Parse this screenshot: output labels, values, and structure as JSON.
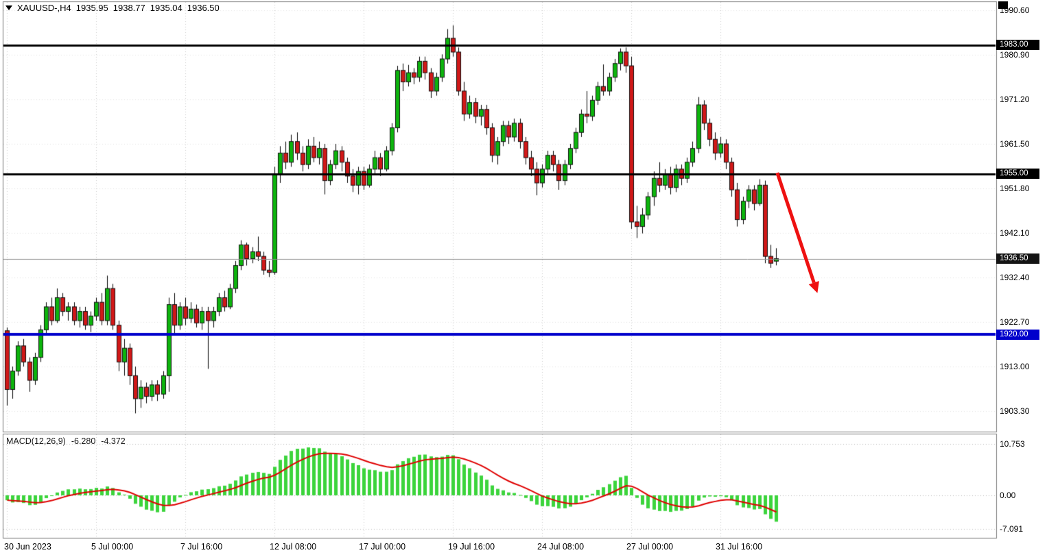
{
  "header": {
    "symbol_period": "XAUUSD-,H4",
    "open": "1935.95",
    "high": "1938.77",
    "low": "1935.04",
    "close": "1936.50"
  },
  "price_axis": {
    "ticks": [
      "1990.60",
      "1980.90",
      "1971.20",
      "1961.50",
      "1951.80",
      "1942.10",
      "1932.40",
      "1922.70",
      "1913.00",
      "1903.30"
    ]
  },
  "levels": [
    {
      "label": "1983.00",
      "price": 1983.0,
      "line_color": "#000000",
      "line_width": 3,
      "badge_bg": "#000000"
    },
    {
      "label": "1955.00",
      "price": 1955.0,
      "line_color": "#000000",
      "line_width": 3,
      "badge_bg": "#000000"
    },
    {
      "label": "1920.00",
      "price": 1920.0,
      "line_color": "#0000cc",
      "line_width": 4,
      "badge_bg": "#0000cc"
    },
    {
      "label": "1936.50",
      "price": 1936.5,
      "line_color": "#909090",
      "line_width": 1,
      "badge_bg": "#141414"
    }
  ],
  "time_axis": {
    "ticks": [
      {
        "label": "30 Jun 2023",
        "bar": 0
      },
      {
        "label": "5 Jul 00:00",
        "bar": 16
      },
      {
        "label": "7 Jul 16:00",
        "bar": 32
      },
      {
        "label": "12 Jul 08:00",
        "bar": 48
      },
      {
        "label": "17 Jul 00:00",
        "bar": 64
      },
      {
        "label": "19 Jul 16:00",
        "bar": 80
      },
      {
        "label": "24 Jul 08:00",
        "bar": 96
      },
      {
        "label": "27 Jul 00:00",
        "bar": 112
      },
      {
        "label": "31 Jul 16:00",
        "bar": 128
      }
    ]
  },
  "macd": {
    "label": "MACD(12,26,9)",
    "value_macd": "-6.280",
    "value_signal": "-4.372",
    "axis_labels": [
      "10.753",
      "0.00",
      "-7.091"
    ],
    "axis_ticks": [
      10.753,
      0,
      -7.091
    ]
  },
  "annotation_arrow": {
    "from": {
      "bar": 138.2,
      "price": 1955.2
    },
    "to": {
      "bar": 145.4,
      "price": 1929.0
    },
    "color": "#ee1111",
    "width": 5
  },
  "chart_data": {
    "type": "candlestick",
    "symbol": "XAUUSD-",
    "timeframe": "H4",
    "title": "XAUUSD- H4 with MACD(12,26,9), horizontal levels at 1983.00 / 1955.00 / 1920.00, current price 1936.50, red down arrow annotation",
    "price_axis_top_label": 1990.6,
    "price_axis_step": 9.7,
    "ohlc_format": [
      "open",
      "high",
      "low",
      "close"
    ],
    "bull_color": "#0db40d",
    "bear_color": "#d01818",
    "wick_color": "#000000",
    "macd_colors": {
      "histogram": "#3cd43c",
      "signal": "#e00000"
    },
    "candles": [
      [
        1920.8,
        1921.5,
        1904.5,
        1908.0
      ],
      [
        1908.0,
        1913.0,
        1906.0,
        1912.0
      ],
      [
        1912.0,
        1918.5,
        1911.0,
        1917.5
      ],
      [
        1917.5,
        1919.0,
        1913.0,
        1914.0
      ],
      [
        1914.0,
        1915.0,
        1907.5,
        1910.0
      ],
      [
        1910.0,
        1916.0,
        1909.0,
        1915.0
      ],
      [
        1915.0,
        1922.0,
        1914.0,
        1921.0
      ],
      [
        1921.0,
        1927.0,
        1920.0,
        1926.0
      ],
      [
        1926.0,
        1928.0,
        1922.0,
        1923.0
      ],
      [
        1923.0,
        1930.0,
        1922.5,
        1928.0
      ],
      [
        1928.0,
        1929.0,
        1924.0,
        1925.0
      ],
      [
        1925.0,
        1927.0,
        1923.0,
        1926.0
      ],
      [
        1926.0,
        1927.0,
        1922.0,
        1923.0
      ],
      [
        1923.0,
        1926.0,
        1921.5,
        1925.0
      ],
      [
        1925.0,
        1926.0,
        1921.0,
        1922.0
      ],
      [
        1922.0,
        1925.0,
        1920.5,
        1924.0
      ],
      [
        1924.0,
        1928.0,
        1923.0,
        1927.0
      ],
      [
        1927.0,
        1929.0,
        1922.0,
        1923.0
      ],
      [
        1923.0,
        1932.8,
        1922.0,
        1930.0
      ],
      [
        1930.0,
        1931.0,
        1921.0,
        1922.0
      ],
      [
        1922.0,
        1923.0,
        1912.0,
        1914.0
      ],
      [
        1914.0,
        1919.0,
        1911.0,
        1917.0
      ],
      [
        1917.0,
        1918.0,
        1909.0,
        1911.0
      ],
      [
        1911.0,
        1913.0,
        1902.8,
        1906.0
      ],
      [
        1906.0,
        1910.0,
        1904.0,
        1908.5
      ],
      [
        1908.5,
        1909.5,
        1905.0,
        1906.5
      ],
      [
        1906.5,
        1910.0,
        1905.5,
        1909.0
      ],
      [
        1909.0,
        1910.0,
        1905.5,
        1907.0
      ],
      [
        1907.0,
        1912.0,
        1906.0,
        1911.0
      ],
      [
        1911.0,
        1928.0,
        1907.5,
        1926.5
      ],
      [
        1926.5,
        1929.0,
        1920.0,
        1922.0
      ],
      [
        1922.0,
        1927.0,
        1921.0,
        1926.0
      ],
      [
        1926.0,
        1928.0,
        1922.0,
        1923.5
      ],
      [
        1923.5,
        1927.0,
        1922.5,
        1925.5
      ],
      [
        1925.5,
        1926.5,
        1921.5,
        1922.5
      ],
      [
        1922.5,
        1926.0,
        1921.0,
        1925.0
      ],
      [
        1925.0,
        1926.0,
        1912.5,
        1923.0
      ],
      [
        1923.0,
        1926.0,
        1921.5,
        1925.0
      ],
      [
        1925.0,
        1929.0,
        1924.0,
        1928.0
      ],
      [
        1928.0,
        1929.5,
        1925.0,
        1926.0
      ],
      [
        1926.0,
        1931.0,
        1925.5,
        1930.0
      ],
      [
        1930.0,
        1936.0,
        1929.0,
        1935.0
      ],
      [
        1935.0,
        1940.5,
        1934.0,
        1939.5
      ],
      [
        1939.5,
        1940.0,
        1935.0,
        1936.5
      ],
      [
        1936.5,
        1939.0,
        1935.5,
        1938.0
      ],
      [
        1938.0,
        1941.3,
        1936.0,
        1937.0
      ],
      [
        1937.0,
        1938.0,
        1933.0,
        1934.0
      ],
      [
        1934.0,
        1936.0,
        1932.5,
        1933.5
      ],
      [
        1933.5,
        1956.5,
        1933.0,
        1955.0
      ],
      [
        1955.0,
        1961.0,
        1953.0,
        1959.5
      ],
      [
        1959.5,
        1962.0,
        1956.0,
        1957.5
      ],
      [
        1957.5,
        1963.5,
        1956.5,
        1962.0
      ],
      [
        1962.0,
        1964.0,
        1958.0,
        1959.5
      ],
      [
        1959.5,
        1961.0,
        1955.5,
        1957.0
      ],
      [
        1957.0,
        1962.5,
        1956.0,
        1961.0
      ],
      [
        1961.0,
        1963.0,
        1957.5,
        1958.5
      ],
      [
        1958.5,
        1962.0,
        1957.0,
        1960.5
      ],
      [
        1960.5,
        1961.5,
        1950.5,
        1953.5
      ],
      [
        1953.5,
        1958.0,
        1952.5,
        1957.0
      ],
      [
        1957.0,
        1961.5,
        1956.0,
        1960.0
      ],
      [
        1960.0,
        1961.0,
        1955.5,
        1957.5
      ],
      [
        1957.5,
        1958.5,
        1953.0,
        1954.5
      ],
      [
        1954.5,
        1956.0,
        1951.0,
        1952.5
      ],
      [
        1952.5,
        1956.5,
        1950.5,
        1955.5
      ],
      [
        1955.5,
        1956.5,
        1951.5,
        1952.5
      ],
      [
        1952.5,
        1957.0,
        1952.0,
        1956.0
      ],
      [
        1956.0,
        1960.0,
        1955.0,
        1958.5
      ],
      [
        1958.5,
        1959.5,
        1954.5,
        1956.0
      ],
      [
        1956.0,
        1961.0,
        1955.5,
        1960.0
      ],
      [
        1960.0,
        1966.0,
        1959.0,
        1965.0
      ],
      [
        1965.0,
        1978.5,
        1964.0,
        1977.5
      ],
      [
        1977.5,
        1979.0,
        1973.0,
        1975.0
      ],
      [
        1975.0,
        1978.7,
        1974.0,
        1977.0
      ],
      [
        1977.0,
        1978.0,
        1974.5,
        1976.0
      ],
      [
        1976.0,
        1980.5,
        1975.0,
        1979.5
      ],
      [
        1979.5,
        1980.5,
        1975.5,
        1977.0
      ],
      [
        1977.0,
        1978.0,
        1971.5,
        1973.0
      ],
      [
        1973.0,
        1977.0,
        1972.0,
        1976.0
      ],
      [
        1976.0,
        1981.0,
        1975.0,
        1980.0
      ],
      [
        1980.0,
        1986.5,
        1979.0,
        1984.5
      ],
      [
        1984.5,
        1987.3,
        1980.5,
        1981.5
      ],
      [
        1981.5,
        1982.5,
        1972.0,
        1973.0
      ],
      [
        1973.0,
        1975.0,
        1966.5,
        1968.0
      ],
      [
        1968.0,
        1972.0,
        1967.0,
        1970.5
      ],
      [
        1970.5,
        1971.5,
        1966.0,
        1967.5
      ],
      [
        1967.5,
        1970.0,
        1965.5,
        1969.0
      ],
      [
        1969.0,
        1970.0,
        1963.5,
        1965.0
      ],
      [
        1965.0,
        1966.0,
        1957.5,
        1959.0
      ],
      [
        1959.0,
        1963.0,
        1957.0,
        1962.0
      ],
      [
        1962.0,
        1966.5,
        1961.0,
        1965.5
      ],
      [
        1965.5,
        1966.5,
        1961.5,
        1963.0
      ],
      [
        1963.0,
        1967.0,
        1962.0,
        1966.0
      ],
      [
        1966.0,
        1967.0,
        1960.5,
        1962.0
      ],
      [
        1962.0,
        1963.0,
        1957.0,
        1958.5
      ],
      [
        1958.5,
        1960.0,
        1954.5,
        1956.0
      ],
      [
        1956.0,
        1957.5,
        1950.3,
        1953.0
      ],
      [
        1953.0,
        1957.0,
        1952.0,
        1956.0
      ],
      [
        1956.0,
        1960.0,
        1955.0,
        1959.0
      ],
      [
        1959.0,
        1960.0,
        1955.5,
        1957.0
      ],
      [
        1957.0,
        1958.0,
        1951.5,
        1953.5
      ],
      [
        1953.5,
        1958.0,
        1952.5,
        1957.0
      ],
      [
        1957.0,
        1961.5,
        1956.0,
        1960.5
      ],
      [
        1960.5,
        1965.0,
        1959.5,
        1964.0
      ],
      [
        1964.0,
        1969.0,
        1963.0,
        1968.0
      ],
      [
        1968.0,
        1973.0,
        1966.0,
        1967.5
      ],
      [
        1967.5,
        1972.0,
        1966.5,
        1971.0
      ],
      [
        1971.0,
        1975.0,
        1970.0,
        1974.0
      ],
      [
        1974.0,
        1978.8,
        1972.0,
        1973.0
      ],
      [
        1973.0,
        1977.0,
        1972.0,
        1976.0
      ],
      [
        1976.0,
        1980.0,
        1975.0,
        1979.0
      ],
      [
        1979.0,
        1982.3,
        1977.5,
        1981.5
      ],
      [
        1981.5,
        1982.5,
        1977.0,
        1978.5
      ],
      [
        1978.5,
        1980.5,
        1943.0,
        1944.5
      ],
      [
        1944.5,
        1948.0,
        1941.0,
        1943.5
      ],
      [
        1943.5,
        1947.5,
        1942.0,
        1946.0
      ],
      [
        1946.0,
        1951.0,
        1945.0,
        1950.0
      ],
      [
        1950.0,
        1955.5,
        1948.0,
        1954.0
      ],
      [
        1954.0,
        1957.5,
        1951.0,
        1952.5
      ],
      [
        1952.5,
        1956.0,
        1951.5,
        1955.0
      ],
      [
        1955.0,
        1956.5,
        1950.5,
        1952.0
      ],
      [
        1952.0,
        1957.0,
        1951.0,
        1956.0
      ],
      [
        1956.0,
        1957.0,
        1952.5,
        1954.0
      ],
      [
        1954.0,
        1958.5,
        1953.0,
        1957.5
      ],
      [
        1957.5,
        1962.0,
        1956.5,
        1960.5
      ],
      [
        1960.5,
        1971.7,
        1959.5,
        1970.0
      ],
      [
        1970.0,
        1971.0,
        1964.5,
        1966.0
      ],
      [
        1966.0,
        1967.0,
        1961.0,
        1962.5
      ],
      [
        1962.5,
        1964.0,
        1958.0,
        1959.5
      ],
      [
        1959.5,
        1963.0,
        1958.5,
        1961.5
      ],
      [
        1961.5,
        1962.5,
        1956.0,
        1957.5
      ],
      [
        1957.5,
        1958.5,
        1950.0,
        1951.5
      ],
      [
        1951.5,
        1953.0,
        1943.5,
        1945.0
      ],
      [
        1945.0,
        1950.0,
        1944.0,
        1949.0
      ],
      [
        1949.0,
        1952.5,
        1947.5,
        1951.5
      ],
      [
        1951.5,
        1952.5,
        1947.0,
        1948.5
      ],
      [
        1948.5,
        1953.8,
        1948.0,
        1952.5
      ],
      [
        1952.5,
        1953.5,
        1935.5,
        1937.0
      ],
      [
        1937.0,
        1939.5,
        1934.5,
        1935.5
      ],
      [
        1935.95,
        1938.77,
        1935.04,
        1936.5
      ]
    ]
  }
}
